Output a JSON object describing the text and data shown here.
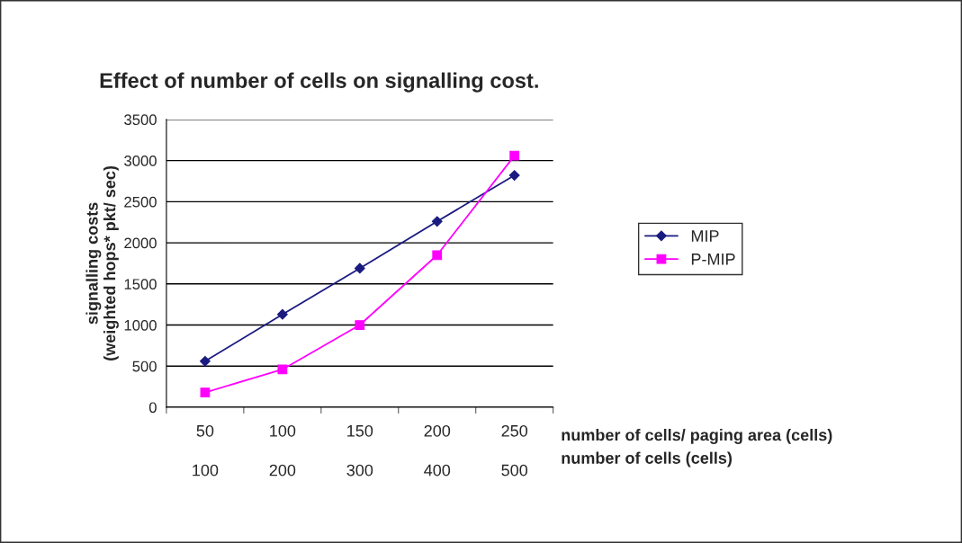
{
  "chart_data": {
    "type": "line",
    "title": "Effect of number of cells on signalling cost.",
    "categories": [
      "50",
      "100",
      "150",
      "200",
      "250"
    ],
    "xlabel": "number of cells/ paging area (cells)",
    "x2label": "number of cells (cells)",
    "x2lim": [
      50,
      550
    ],
    "x2ticks": [
      100,
      200,
      300,
      400,
      500
    ],
    "ylabel": "signalling costs\n(weighted hops* pkt/ sec)",
    "ylim": [
      0,
      3500
    ],
    "yticks": [
      0,
      500,
      1000,
      1500,
      2000,
      2500,
      3000,
      3500
    ],
    "grid": "y",
    "legend": "right",
    "series": [
      {
        "name": "MIP",
        "color": "#1a1a80",
        "marker": "diamond",
        "values": [
          560,
          1130,
          1690,
          2260,
          2820
        ]
      },
      {
        "name": "P-MIP",
        "color": "#ff00ff",
        "marker": "square",
        "values": [
          180,
          460,
          1000,
          1850,
          3060
        ]
      }
    ]
  }
}
